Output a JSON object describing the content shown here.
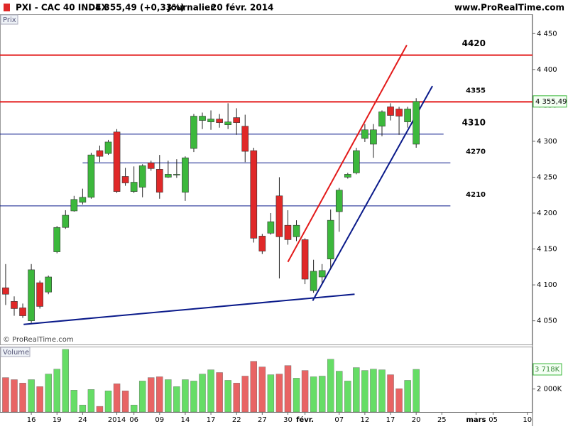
{
  "chart_data": {
    "type": "candlestick",
    "instrument": "PXI - CAC 40 INDEX",
    "change": "4 355,49 (+0,33%)",
    "period": "Journalier",
    "date": "20 févr. 2014",
    "source": "www.ProRealTime.com",
    "pane_label": "Prix",
    "copyright": "© ProRealTime.com",
    "volume_label": "Volume",
    "up_color": "#3cb83c",
    "down_color": "#e02828",
    "volume_up_color": "#66dd66",
    "volume_down_color": "#e86464",
    "xlim": [
      -0.66,
      61.6
    ],
    "xticks": [
      {
        "value": 3,
        "label": "16"
      },
      {
        "value": 6,
        "label": "19"
      },
      {
        "value": 9,
        "label": "24"
      },
      {
        "value": 13,
        "label": "2014"
      },
      {
        "value": 15,
        "label": "06"
      },
      {
        "value": 18,
        "label": "09"
      },
      {
        "value": 21,
        "label": "14"
      },
      {
        "value": 24,
        "label": "17"
      },
      {
        "value": 27,
        "label": "22"
      },
      {
        "value": 30,
        "label": "27"
      },
      {
        "value": 33,
        "label": "30"
      },
      {
        "value": 35,
        "label": "févr."
      },
      {
        "value": 39,
        "label": "07"
      },
      {
        "value": 42,
        "label": "12"
      },
      {
        "value": 45,
        "label": "17"
      },
      {
        "value": 48,
        "label": "20"
      },
      {
        "value": 51,
        "label": "25"
      },
      {
        "value": 55,
        "label": "mars"
      },
      {
        "value": 57,
        "label": "05"
      },
      {
        "value": 61,
        "label": "10"
      }
    ],
    "ylim": [
      4017,
      4477
    ],
    "yticks": [
      {
        "value": 4050,
        "label": "4 050"
      },
      {
        "value": 4100,
        "label": "4 100"
      },
      {
        "value": 4150,
        "label": "4 150"
      },
      {
        "value": 4200,
        "label": "4 200"
      },
      {
        "value": 4250,
        "label": "4 250"
      },
      {
        "value": 4300,
        "label": "4 300"
      },
      {
        "value": 4350,
        "label": "4 350"
      },
      {
        "value": 4400,
        "label": "4 400"
      },
      {
        "value": 4450,
        "label": "4 450"
      }
    ],
    "last_price": {
      "value": 4355.49,
      "label": "4 355,49"
    },
    "open": [
      4096,
      4077,
      4068,
      4050,
      4103,
      4090,
      4146,
      4180,
      4203,
      4215,
      4222,
      4287,
      4283,
      4313,
      4251,
      4230,
      4236,
      4270,
      4261,
      4250,
      4253,
      4229,
      4290,
      4329,
      4327,
      4331,
      4323,
      4333,
      4321,
      4287,
      4168,
      4172,
      4224,
      4183,
      4167,
      4163,
      4092,
      4111,
      4136,
      4202,
      4250,
      4256,
      4304,
      4296,
      4321,
      4348,
      4345,
      4327,
      4296
    ],
    "high": [
      4129,
      4084,
      4074,
      4129,
      4106,
      4113,
      4182,
      4204,
      4224,
      4234,
      4284,
      4294,
      4302,
      4317,
      4263,
      4265,
      4268,
      4273,
      4281,
      4273,
      4275,
      4279,
      4338,
      4340,
      4343,
      4338,
      4353,
      4346,
      4337,
      4291,
      4171,
      4200,
      4250,
      4204,
      4190,
      4165,
      4135,
      4129,
      4205,
      4235,
      4256,
      4291,
      4324,
      4324,
      4343,
      4353,
      4348,
      4348,
      4360
    ],
    "low": [
      4072,
      4057,
      4054,
      4047,
      4067,
      4087,
      4144,
      4178,
      4202,
      4212,
      4220,
      4271,
      4281,
      4228,
      4238,
      4228,
      4222,
      4259,
      4220,
      4249,
      4249,
      4217,
      4285,
      4317,
      4316,
      4319,
      4317,
      4309,
      4271,
      4159,
      4143,
      4170,
      4109,
      4156,
      4161,
      4101,
      4089,
      4103,
      4123,
      4174,
      4248,
      4254,
      4299,
      4277,
      4307,
      4329,
      4309,
      4319,
      4291
    ],
    "close": [
      4087,
      4067,
      4057,
      4121,
      4070,
      4111,
      4180,
      4197,
      4219,
      4222,
      4281,
      4279,
      4299,
      4230,
      4242,
      4243,
      4266,
      4262,
      4229,
      4254,
      4254,
      4277,
      4335,
      4335,
      4331,
      4326,
      4327,
      4326,
      4286,
      4165,
      4147,
      4188,
      4167,
      4163,
      4183,
      4108,
      4119,
      4120,
      4190,
      4232,
      4254,
      4287,
      4316,
      4316,
      4341,
      4336,
      4335,
      4345,
      4355.49
    ],
    "volume": [
      3000,
      2820,
      2520,
      2820,
      2210,
      3310,
      3740,
      5460,
      1900,
      610,
      1960,
      490,
      1840,
      2460,
      1840,
      610,
      2700,
      3000,
      3070,
      2820,
      2210,
      2820,
      2700,
      3310,
      3680,
      3440,
      2760,
      2520,
      3130,
      4420,
      3930,
      3250,
      3310,
      4050,
      2950,
      3620,
      3070,
      3130,
      4600,
      3560,
      2700,
      3870,
      3620,
      3740,
      3680,
      3250,
      2030,
      2760,
      3718
    ],
    "volume_last_label": "3 718K",
    "volume_ylim": [
      0,
      5700
    ],
    "volume_yticks": [
      {
        "value": 2000,
        "label": "2 000K"
      }
    ],
    "levels": [
      {
        "value": 4420,
        "label": "4420",
        "color": "#e31a1a",
        "bold": true
      },
      {
        "value": 4355,
        "label": "4355",
        "color": "#e31a1a",
        "bold": false
      },
      {
        "value": 4310,
        "label": "4310",
        "color": "#0a1a8a",
        "bold": true,
        "end": 51.2
      },
      {
        "value": 4270,
        "label": "4270",
        "color": "#0a1a8a",
        "bold": false,
        "start": 9,
        "end": 52
      },
      {
        "value": 4210,
        "label": "4210",
        "color": "#0a1a8a",
        "bold": false,
        "end": 52
      }
    ],
    "trendlines": [
      {
        "color": "#e31a1a",
        "x": [
          33,
          46.9
        ],
        "y": [
          4132,
          4434
        ]
      },
      {
        "color": "#0a1a8a",
        "x": [
          35.9,
          49.9
        ],
        "y": [
          4078,
          4377
        ]
      },
      {
        "color": "#0a1a8a",
        "x": [
          2.1,
          40.8
        ],
        "y": [
          4045,
          4087
        ]
      }
    ]
  }
}
